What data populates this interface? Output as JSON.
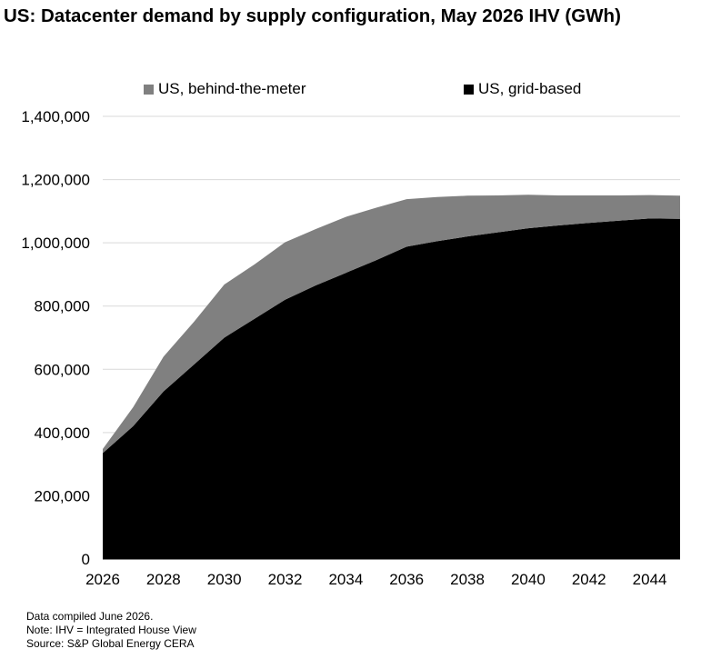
{
  "chart_data": {
    "type": "area",
    "stacked": true,
    "title": "US: Datacenter demand by supply configuration, May 2026 IHV (GWh)",
    "xlabel": "",
    "ylabel": "",
    "x": [
      2026,
      2027,
      2028,
      2029,
      2030,
      2031,
      2032,
      2033,
      2034,
      2035,
      2036,
      2037,
      2038,
      2039,
      2040,
      2041,
      2042,
      2043,
      2044,
      2045
    ],
    "x_ticks": [
      "2026",
      "2028",
      "2030",
      "2032",
      "2034",
      "2036",
      "2038",
      "2040",
      "2042",
      "2044"
    ],
    "y_ticks": [
      "0",
      "200,000",
      "400,000",
      "600,000",
      "800,000",
      "1,000,000",
      "1,200,000",
      "1,400,000"
    ],
    "ylim": [
      0,
      1400000
    ],
    "xlim": [
      2026,
      2045
    ],
    "grid": "horizontal",
    "legend_position": "top",
    "series": [
      {
        "name": "US, grid-based",
        "color": "#000000",
        "values": [
          335000,
          420000,
          530000,
          615000,
          700000,
          760000,
          820000,
          865000,
          905000,
          945000,
          988000,
          1005000,
          1020000,
          1033000,
          1046000,
          1055000,
          1063000,
          1070000,
          1077000,
          1076000
        ]
      },
      {
        "name": "US, behind-the-meter",
        "color": "#808080",
        "values": [
          13000,
          60000,
          110000,
          135000,
          168000,
          172000,
          182000,
          178000,
          177000,
          166000,
          150000,
          140000,
          129000,
          117000,
          106000,
          95000,
          87000,
          80000,
          74000,
          73000
        ]
      }
    ]
  },
  "notes": {
    "line1": "Data compiled June 2026.",
    "line2": "Note: IHV = Integrated House View",
    "line3": "Source: S&P Global Energy CERA"
  }
}
